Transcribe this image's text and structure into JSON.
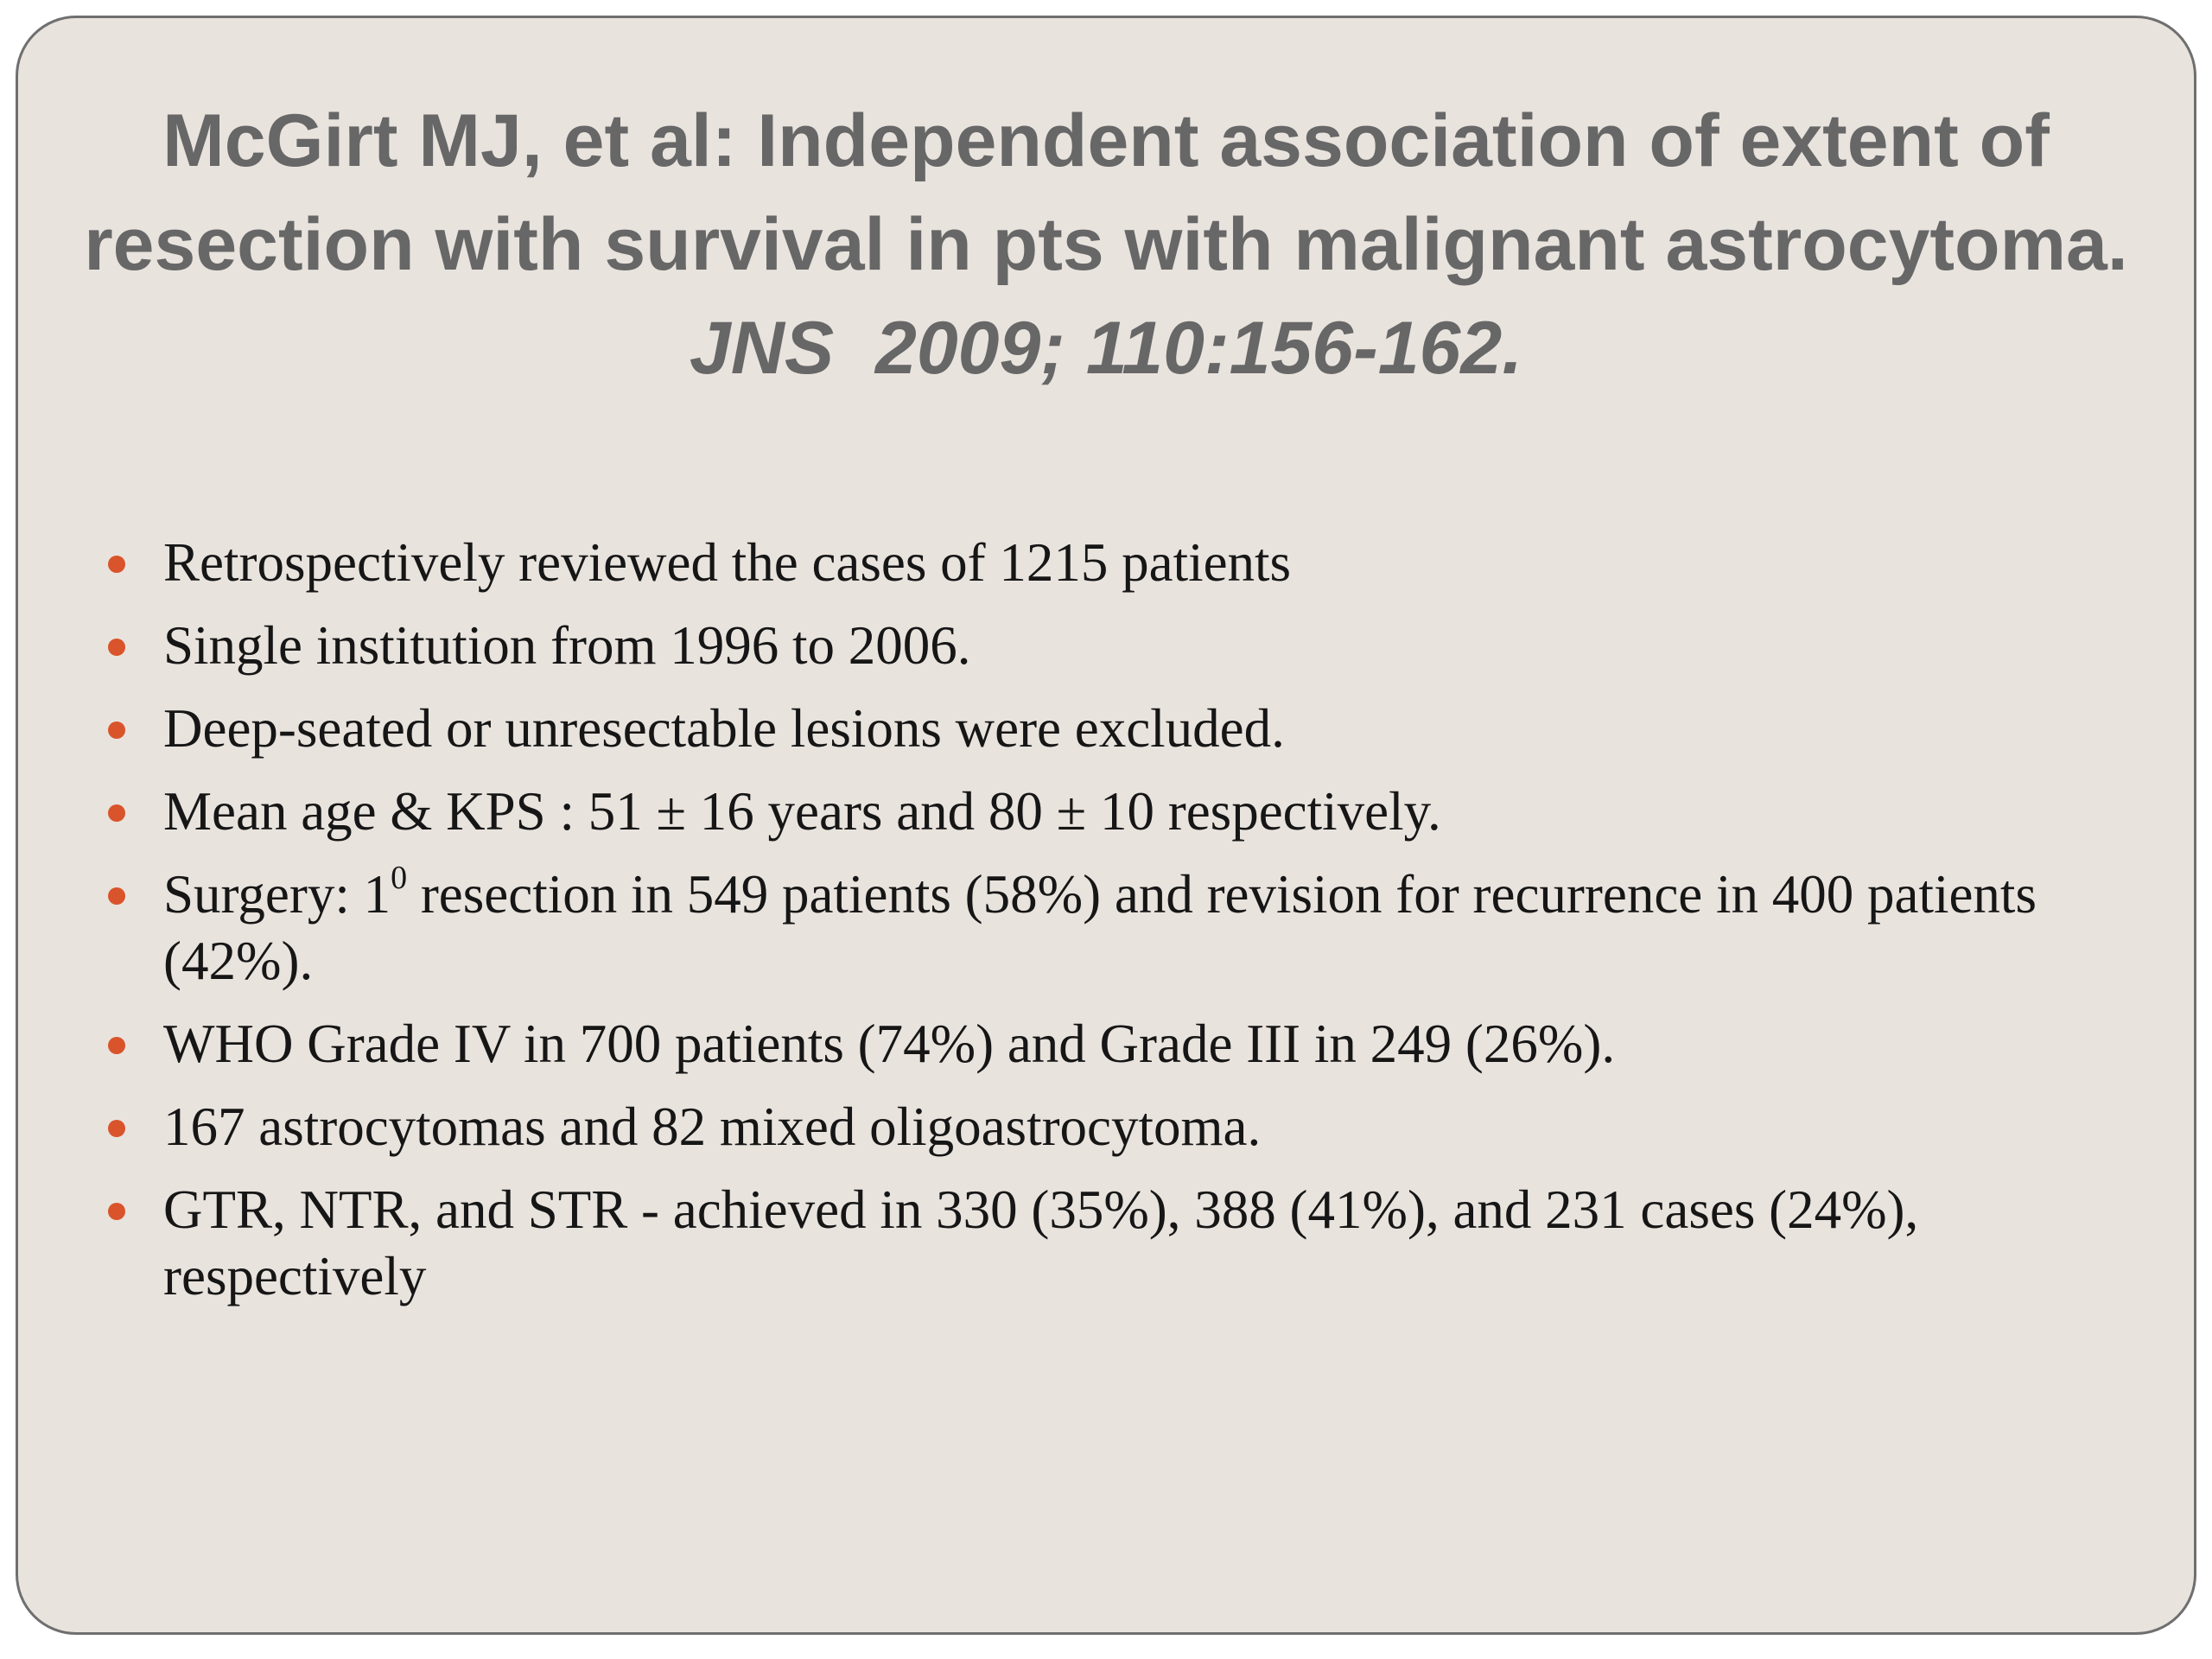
{
  "title": {
    "line1": "McGirt MJ, et al: Independent association of extent of",
    "line2": "resection with survival in pts with malignant astrocytoma.",
    "citation": "JNS  2009; 110:156-162."
  },
  "colors": {
    "slide_background": "#e9e3de",
    "title_text": "#676767",
    "bullet_text": "#161616",
    "bullet_marker": "#d9542b"
  },
  "bullets": [
    "Retrospectively reviewed the cases of 1215 patients",
    "Single institution from 1996 to 2006.",
    "Deep-seated or unresectable lesions were excluded.",
    "Mean age & KPS : 51 ± 16 years and 80 ± 10 respectively.",
    {
      "before_sup": "Surgery: 1",
      "sup": "0",
      "after_sup": " resection in 549 patients (58%) and revision for recurrence in 400 patients (42%)."
    },
    "WHO Grade IV in 700 patients (74%) and Grade III in 249 (26%).",
    "167 astrocytomas and 82 mixed oligoastrocytoma.",
    "GTR, NTR, and STR - achieved in 330 (35%), 388 (41%), and 231 cases (24%), respectively"
  ]
}
